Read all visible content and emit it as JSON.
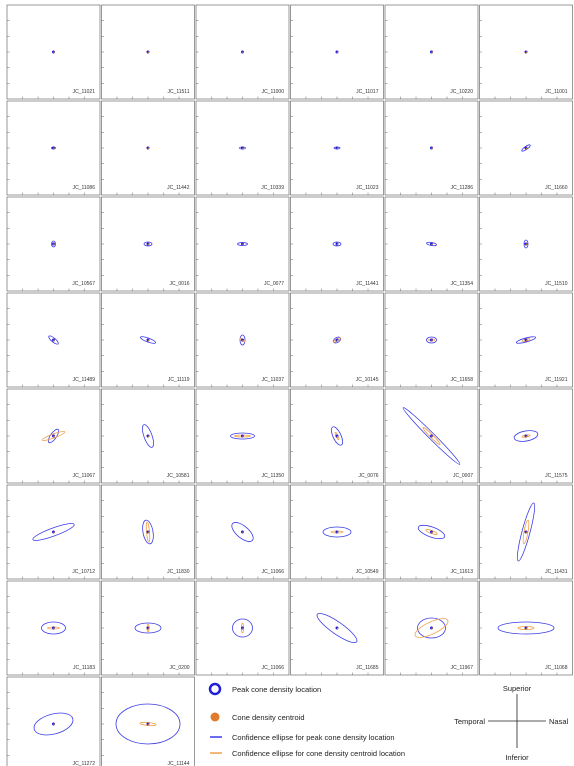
{
  "colors": {
    "peak": "#1f1fd6",
    "centroid": "#e07b2e",
    "peak_ellipse": "#3b3be8",
    "centroid_ellipse": "#f0a04a",
    "panel_border": "#555555"
  },
  "panels": [
    {
      "label": "JC_11021",
      "pe": [
        0,
        0,
        0
      ],
      "ce": [
        0,
        0,
        0
      ]
    },
    {
      "label": "JC_11511",
      "pe": [
        0,
        0,
        0
      ],
      "ce": [
        0,
        0,
        0
      ]
    },
    {
      "label": "JC_11000",
      "pe": [
        0,
        0,
        0
      ],
      "ce": [
        0,
        0,
        0
      ]
    },
    {
      "label": "JC_11017",
      "pe": [
        0,
        0,
        0
      ],
      "ce": [
        0,
        0,
        0
      ]
    },
    {
      "label": "JC_10220",
      "pe": [
        0,
        0,
        0
      ],
      "ce": [
        0,
        0,
        0
      ]
    },
    {
      "label": "JC_11001",
      "pe": [
        0,
        0,
        0
      ],
      "ce": [
        0,
        0,
        0
      ]
    },
    {
      "label": "JC_11086",
      "pe": [
        2,
        1,
        0
      ],
      "ce": [
        0,
        0,
        0
      ]
    },
    {
      "label": "JC_11442",
      "pe": [
        0,
        0,
        0
      ],
      "ce": [
        0,
        0,
        0
      ]
    },
    {
      "label": "JC_10339",
      "pe": [
        3,
        1,
        0
      ],
      "ce": [
        0,
        0,
        0
      ]
    },
    {
      "label": "JC_11023",
      "pe": [
        3,
        1,
        0
      ],
      "ce": [
        0,
        0,
        0
      ]
    },
    {
      "label": "JC_11286",
      "pe": [
        0,
        0,
        0
      ],
      "ce": [
        0,
        0,
        0
      ]
    },
    {
      "label": "JC_11660",
      "pe": [
        5,
        1.5,
        -35
      ],
      "ce": [
        0,
        0,
        0
      ]
    },
    {
      "label": "JC_10567",
      "pe": [
        2,
        3,
        0
      ],
      "ce": [
        0,
        0,
        0
      ]
    },
    {
      "label": "JC_0016",
      "pe": [
        4,
        2,
        0
      ],
      "ce": [
        0,
        0,
        0
      ]
    },
    {
      "label": "JC_0077",
      "pe": [
        5,
        1.5,
        0
      ],
      "ce": [
        0,
        0,
        0
      ]
    },
    {
      "label": "JC_11441",
      "pe": [
        4,
        2,
        0
      ],
      "ce": [
        0,
        0,
        0
      ]
    },
    {
      "label": "JC_11354",
      "pe": [
        5,
        1.5,
        10
      ],
      "ce": [
        0,
        0,
        0
      ]
    },
    {
      "label": "JC_11510",
      "pe": [
        2,
        4,
        0
      ],
      "ce": [
        0,
        0,
        0
      ]
    },
    {
      "label": "JC_11489",
      "pe": [
        6,
        2,
        40
      ],
      "ce": [
        0,
        0,
        0
      ]
    },
    {
      "label": "JC_11119",
      "pe": [
        8,
        2,
        20
      ],
      "ce": [
        0,
        0,
        0
      ]
    },
    {
      "label": "JC_11037",
      "pe": [
        2.5,
        5,
        0
      ],
      "ce": [
        3,
        1,
        30
      ]
    },
    {
      "label": "JC_10145",
      "pe": [
        4,
        2.5,
        -30
      ],
      "ce": [
        4,
        1,
        -30
      ]
    },
    {
      "label": "JC_11658",
      "pe": [
        5,
        3,
        0
      ],
      "ce": [
        3,
        1,
        0
      ]
    },
    {
      "label": "JC_11921",
      "pe": [
        10,
        2,
        -15
      ],
      "ce": [
        4,
        1,
        -15
      ]
    },
    {
      "label": "JC_11067",
      "pe": [
        8,
        3,
        -55
      ],
      "ce": [
        12,
        2,
        -20
      ]
    },
    {
      "label": "JC_10581",
      "pe": [
        12,
        4,
        70
      ],
      "ce": [
        0,
        0,
        0
      ]
    },
    {
      "label": "JC_11350",
      "pe": [
        12,
        3,
        0
      ],
      "ce": [
        8,
        1,
        0
      ]
    },
    {
      "label": "JC_0076",
      "pe": [
        10,
        4,
        65
      ],
      "ce": [
        4,
        1,
        65
      ]
    },
    {
      "label": "JC_0007",
      "pe": [
        40,
        3,
        45
      ],
      "ce": [
        12,
        1.5,
        45
      ]
    },
    {
      "label": "JC_11575",
      "pe": [
        12,
        5,
        -10
      ],
      "ce": [
        4,
        1,
        -10
      ]
    },
    {
      "label": "JC_10712",
      "pe": [
        22,
        4,
        -20
      ],
      "ce": [
        0,
        0,
        0
      ]
    },
    {
      "label": "JC_11830",
      "pe": [
        12,
        5,
        80
      ],
      "ce": [
        10,
        1.5,
        85
      ]
    },
    {
      "label": "JC_11066",
      "pe": [
        13,
        6,
        40
      ],
      "ce": [
        0,
        0,
        0
      ]
    },
    {
      "label": "JC_10549",
      "pe": [
        14,
        5,
        0
      ],
      "ce": [
        6,
        1,
        0
      ]
    },
    {
      "label": "JC_11613",
      "pe": [
        14,
        5,
        20
      ],
      "ce": [
        6,
        1.5,
        20
      ]
    },
    {
      "label": "JC_11431",
      "pe": [
        30,
        4,
        -75
      ],
      "ce": [
        12,
        2,
        -80
      ]
    },
    {
      "label": "JC_11183",
      "pe": [
        12,
        6,
        0
      ],
      "ce": [
        6,
        1,
        0
      ]
    },
    {
      "label": "JC_0200",
      "pe": [
        13,
        5,
        0
      ],
      "ce": [
        4,
        1,
        90
      ]
    },
    {
      "label": "JC_11066",
      "pe": [
        10,
        9,
        0
      ],
      "ce": [
        5,
        1,
        90
      ]
    },
    {
      "label": "JC_11685",
      "pe": [
        24,
        6,
        35
      ],
      "ce": [
        0,
        0,
        0
      ]
    },
    {
      "label": "JC_11967",
      "pe": [
        14,
        10,
        0
      ],
      "ce": [
        18,
        6,
        -25
      ]
    },
    {
      "label": "JC_11068",
      "pe": [
        28,
        6,
        0
      ],
      "ce": [
        8,
        1.5,
        0
      ]
    },
    {
      "label": "JC_11272",
      "pe": [
        20,
        10,
        -15
      ],
      "ce": [
        0,
        0,
        0
      ]
    },
    {
      "label": "JC_11144",
      "pe": [
        32,
        20,
        0
      ],
      "ce": [
        8,
        1.5,
        5
      ]
    }
  ],
  "legend": {
    "peak": "Peak cone density location",
    "centroid": "Cone density centroid",
    "peak_ellipse": "Confidence ellipse for peak cone density location",
    "centroid_ellipse": "Confidence ellipse for cone density centroid location"
  },
  "compass": {
    "superior": "Superior",
    "inferior": "Inferior",
    "temporal": "Temporal",
    "nasal": "Nasal"
  }
}
